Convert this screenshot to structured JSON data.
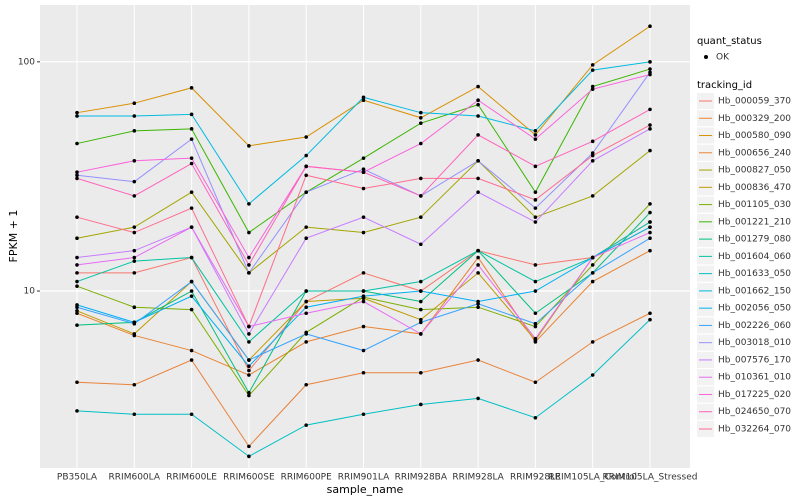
{
  "chart_data": {
    "type": "line",
    "x_label": "sample_name",
    "y_label": "FPKM + 1",
    "categories": [
      "PB350LA",
      "RRIM600LA",
      "RRIM600LE",
      "RRIM600SE",
      "RRIM600PE",
      "RRIM901LA",
      "RRIM928BA",
      "RRIM928LA",
      "RRIM928LE",
      "RRIM105LA_Control",
      "RRIM105LA_Stressed"
    ],
    "ylim": [
      1.69,
      177
    ],
    "yticks": [
      10,
      100
    ],
    "log_scale": true,
    "grid": true,
    "status_legend": {
      "title": "quant_status",
      "label": "OK"
    },
    "legend_title": "tracking_id",
    "series": [
      {
        "name": "Hb_000059_370",
        "color": "#F8766D",
        "values": [
          12,
          12,
          14,
          4.5,
          9,
          12,
          10,
          15,
          13,
          14,
          20
        ]
      },
      {
        "name": "Hb_000329_200",
        "color": "#EA8331",
        "values": [
          8,
          6.4,
          5.5,
          4.3,
          6,
          7,
          6.5,
          14,
          6,
          11,
          15
        ]
      },
      {
        "name": "Hb_000580_090",
        "color": "#D89000",
        "values": [
          60,
          66,
          77,
          43,
          47,
          68,
          57,
          78,
          48,
          97,
          143
        ]
      },
      {
        "name": "Hb_000656_240",
        "color": "#E8823A",
        "values": [
          4,
          3.9,
          5,
          2.1,
          3.9,
          4.4,
          4.4,
          5,
          4,
          6,
          8
        ]
      },
      {
        "name": "Hb_000827_050",
        "color": "#A3A500",
        "values": [
          17,
          19,
          27,
          12,
          19,
          18,
          21,
          37,
          21,
          26,
          41
        ]
      },
      {
        "name": "Hb_000836_470",
        "color": "#C09B00",
        "values": [
          8.2,
          6.5,
          11,
          5,
          9,
          9.3,
          7.5,
          12,
          6.1,
          14,
          19
        ]
      },
      {
        "name": "Hb_001105_030",
        "color": "#7CAE00",
        "values": [
          10.5,
          8.5,
          8.3,
          3.5,
          6.6,
          9.4,
          8.3,
          8.5,
          7,
          13,
          24
        ]
      },
      {
        "name": "Hb_001221_210",
        "color": "#39B600",
        "values": [
          44,
          50,
          51,
          18,
          27,
          38,
          54,
          65,
          27,
          78,
          93
        ]
      },
      {
        "name": "Hb_001279_080",
        "color": "#00BF7D",
        "values": [
          7.1,
          7.3,
          10,
          3.6,
          10,
          10,
          9,
          15,
          8,
          12,
          22
        ]
      },
      {
        "name": "Hb_001604_060",
        "color": "#00C1A3",
        "values": [
          11,
          13.5,
          14,
          6,
          10,
          10,
          11,
          15,
          11,
          14,
          20
        ]
      },
      {
        "name": "Hb_001633_050",
        "color": "#00BFC4",
        "values": [
          3,
          2.9,
          2.9,
          1.9,
          2.6,
          2.9,
          3.2,
          3.4,
          2.8,
          4.3,
          7.5
        ]
      },
      {
        "name": "Hb_001662_150",
        "color": "#00BAE0",
        "values": [
          58,
          58,
          59,
          24,
          39,
          70,
          60,
          58,
          50,
          92,
          100
        ]
      },
      {
        "name": "Hb_002056_050",
        "color": "#00B0F6",
        "values": [
          8.7,
          7.3,
          9.5,
          4.7,
          8.5,
          9.5,
          10,
          9,
          10,
          14,
          19
        ]
      },
      {
        "name": "Hb_002226_060",
        "color": "#35A2FF",
        "values": [
          8.5,
          7.2,
          11,
          5,
          6.5,
          5.5,
          7.3,
          8.8,
          7.2,
          12,
          17
        ]
      },
      {
        "name": "Hb_003018_010",
        "color": "#9590FF",
        "values": [
          32,
          30,
          46,
          12,
          27,
          34,
          26,
          37,
          23,
          40,
          90
        ]
      },
      {
        "name": "Hb_007576_170",
        "color": "#C77CFF",
        "values": [
          14,
          15,
          19,
          6.5,
          17,
          21,
          16,
          27,
          20,
          37,
          51
        ]
      },
      {
        "name": "Hb_010361_010",
        "color": "#E76BF3",
        "values": [
          13,
          14,
          19,
          7,
          8,
          9,
          6.5,
          13,
          6.2,
          14,
          18
        ]
      },
      {
        "name": "Hb_017225_020",
        "color": "#FA62DB",
        "values": [
          33,
          37,
          38,
          14,
          35,
          33,
          44,
          68,
          46,
          76,
          88
        ]
      },
      {
        "name": "Hb_024650_070",
        "color": "#FF62BC",
        "values": [
          31,
          26,
          36,
          13,
          35,
          33,
          26,
          48,
          35,
          45,
          62
        ]
      },
      {
        "name": "Hb_032264_070",
        "color": "#FF6C91",
        "values": [
          21,
          18,
          23,
          7,
          32,
          28,
          31,
          31,
          25,
          39,
          53
        ]
      }
    ]
  }
}
